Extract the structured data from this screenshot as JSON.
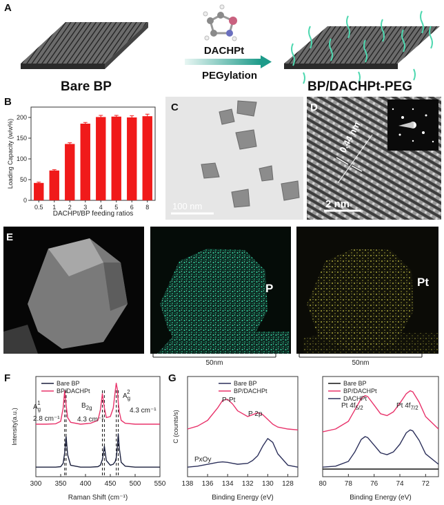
{
  "figure": {
    "panel_labels": [
      "A",
      "B",
      "C",
      "D",
      "E",
      "F",
      "G"
    ],
    "a": {
      "left_caption": "Bare BP",
      "molecule": "DACHPt",
      "process": "PEGylation",
      "right_caption": "BP/DACHPt-PEG"
    },
    "c": {
      "scale": "100 nm"
    },
    "d": {
      "spacing": "0.44 nm",
      "scale": "2 nm"
    },
    "e": {
      "element_1": "P",
      "element_2": "Pt",
      "scale_1": "50nm",
      "scale_2": "50nm"
    }
  },
  "chart_data": [
    {
      "type": "bar",
      "x_label": "DACHPt/BP feeding ratios",
      "y_label": "Loading Capacity (w/w%)",
      "categories": [
        "0.5",
        "1",
        "2",
        "3",
        "4",
        "5",
        "6",
        "8"
      ],
      "values": [
        42,
        72,
        136,
        185,
        201,
        202,
        200,
        203
      ],
      "errors": [
        2,
        2,
        3,
        3,
        4,
        3,
        4,
        5
      ],
      "color": "#f01a1a",
      "ylim": [
        0,
        225
      ],
      "yticks": [
        0,
        50,
        100,
        150,
        200
      ]
    },
    {
      "type": "line",
      "x_label": "Raman Shift (cm⁻¹)",
      "y_label": "Intensity(a.u.)",
      "legend": "upper left",
      "x": [
        300,
        320,
        340,
        350,
        355,
        358,
        361,
        364,
        370,
        390,
        410,
        425,
        430,
        434,
        438,
        442,
        450,
        456,
        460,
        462,
        464,
        466,
        468,
        472,
        480,
        500,
        525,
        550
      ],
      "series": [
        {
          "name": "Bare BP",
          "color": "#1a1f3c",
          "values": [
            1.0,
            1.0,
            1.0,
            1.05,
            1.4,
            2.5,
            4.2,
            2.3,
            1.2,
            1.0,
            1.0,
            1.05,
            1.2,
            1.8,
            3.2,
            1.7,
            1.2,
            1.3,
            1.6,
            2.0,
            3.0,
            4.5,
            3.0,
            1.5,
            1.1,
            1.0,
            1.0,
            1.0
          ]
        },
        {
          "name": "BP/DACHPt",
          "color": "#e8326a",
          "values": [
            5.5,
            5.5,
            5.55,
            5.8,
            7.2,
            9.0,
            7.5,
            6.2,
            5.7,
            5.5,
            5.6,
            5.9,
            7.0,
            8.7,
            7.2,
            6.2,
            6.3,
            7.2,
            9.0,
            9.8,
            9.2,
            7.8,
            6.8,
            5.9,
            5.6,
            5.5,
            5.5,
            5.5
          ]
        }
      ],
      "reference_lines": [
        358,
        361,
        434,
        438,
        462,
        466
      ],
      "annotations": [
        {
          "text": "A",
          "sub": "g",
          "sup": "1"
        },
        {
          "text": "2.8 cm⁻¹"
        },
        {
          "text": "B",
          "sub": "2g"
        },
        {
          "text": "4.3 cm⁻¹"
        },
        {
          "text": "A",
          "sub": "g",
          "sup": "2"
        },
        {
          "text": "4.3 cm⁻¹"
        }
      ],
      "xlim": [
        300,
        550
      ],
      "xticks": [
        300,
        350,
        400,
        450,
        500,
        550
      ],
      "ylim": [
        0,
        10.5
      ]
    },
    {
      "type": "line",
      "x_label": "Binding Energy (eV)",
      "y_label": "C (counts/s)",
      "legend": "upper center",
      "x": [
        138,
        137,
        136,
        135,
        134.5,
        134,
        133.5,
        133,
        132,
        131.5,
        131,
        130.5,
        130,
        129.5,
        129,
        128,
        127
      ],
      "series": [
        {
          "name": "Bare BP",
          "color": "#2b2f5a",
          "values": [
            1.0,
            1.1,
            1.3,
            1.5,
            1.55,
            1.5,
            1.4,
            1.3,
            1.4,
            1.7,
            2.2,
            3.2,
            4.0,
            3.6,
            2.4,
            1.2,
            1.0
          ]
        },
        {
          "name": "BP/DACHPt",
          "color": "#e8326a",
          "values": [
            5.0,
            5.3,
            5.9,
            7.2,
            8.0,
            8.1,
            7.6,
            6.9,
            6.3,
            6.5,
            6.7,
            6.5,
            6.0,
            5.5,
            5.2,
            5.0,
            4.9
          ]
        }
      ],
      "annotations": [
        {
          "text": "P-Pt"
        },
        {
          "text": "P 2p"
        },
        {
          "text": "PxOy"
        }
      ],
      "xlim": [
        138,
        127
      ],
      "xticks": [
        138,
        136,
        134,
        132,
        130,
        128
      ],
      "ylim": [
        0,
        10.5
      ]
    },
    {
      "type": "line",
      "x_label": "Binding Energy (eV)",
      "legend": "upper left",
      "x": [
        80,
        79,
        78,
        77.5,
        77,
        76.7,
        76.5,
        76,
        75.5,
        75,
        74.5,
        74,
        73.5,
        73.2,
        73,
        72.5,
        72,
        71
      ],
      "series": [
        {
          "name": "Bare BP",
          "color": "#111111",
          "values": [
            0.8,
            0.8,
            0.8,
            0.8,
            0.8,
            0.8,
            0.8,
            0.8,
            0.8,
            0.8,
            0.8,
            0.8,
            0.8,
            0.8,
            0.8,
            0.8,
            0.8,
            0.8
          ]
        },
        {
          "name": "BP/DACHPt",
          "color": "#e8326a",
          "values": [
            4.7,
            5.0,
            5.8,
            7.0,
            8.2,
            8.5,
            8.4,
            7.5,
            6.6,
            6.4,
            6.8,
            7.7,
            8.7,
            9.0,
            8.9,
            7.8,
            6.3,
            5.0
          ]
        },
        {
          "name": "DACHPt",
          "color": "#2b2f5a",
          "values": [
            1.0,
            1.1,
            1.6,
            2.6,
            3.9,
            4.2,
            4.1,
            3.3,
            2.5,
            2.3,
            2.6,
            3.4,
            4.6,
            4.9,
            4.8,
            3.8,
            2.4,
            1.3
          ]
        }
      ],
      "annotations": [
        {
          "text": "Pt 4f",
          "sub": "5/2"
        },
        {
          "text": "Pt 4f",
          "sub": "7/2"
        }
      ],
      "xlim": [
        80,
        71
      ],
      "xticks": [
        80,
        78,
        76,
        74,
        72
      ],
      "ylim": [
        0,
        10.5
      ]
    }
  ]
}
